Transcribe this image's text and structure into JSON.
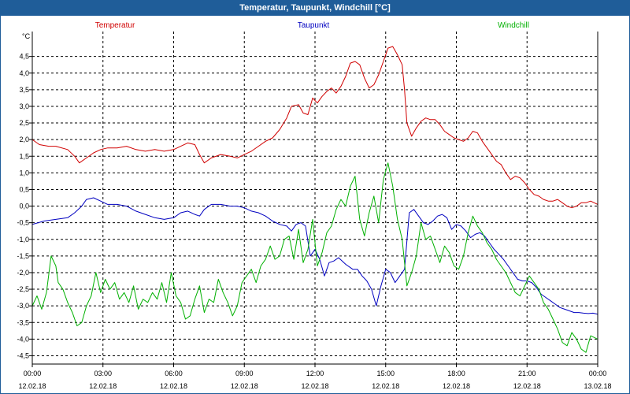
{
  "window": {
    "title": "Temperatur, Taupunkt, Windchill [°C]"
  },
  "colors": {
    "temperatur": "#d00000",
    "taupunkt": "#0000c0",
    "windchill": "#00b000",
    "titlebar": "#1f5d99"
  },
  "chart_data": {
    "type": "line",
    "title": "Temperatur, Taupunkt, Windchill [°C]",
    "ylabel": "°C",
    "xlabel": "",
    "ylim": [
      -4.75,
      5.25
    ],
    "xlim": [
      0,
      24
    ],
    "grid": true,
    "y_ticks": [
      "4,5",
      "4,0",
      "3,5",
      "3,0",
      "2,5",
      "2,0",
      "1,5",
      "1,0",
      "0,5",
      "0,0",
      "-0,5",
      "-1,0",
      "-1,5",
      "-2,0",
      "-2,5",
      "-3,0",
      "-3,5",
      "-4,0",
      "-4,5"
    ],
    "y_tick_values": [
      4.5,
      4.0,
      3.5,
      3.0,
      2.5,
      2.0,
      1.5,
      1.0,
      0.5,
      0.0,
      -0.5,
      -1.0,
      -1.5,
      -2.0,
      -2.5,
      -3.0,
      -3.5,
      -4.0,
      -4.5
    ],
    "x_ticks": [
      {
        "time": "00:00",
        "date": "12.02.18"
      },
      {
        "time": "03:00",
        "date": "12.02.18"
      },
      {
        "time": "06:00",
        "date": "12.02.18"
      },
      {
        "time": "09:00",
        "date": "12.02.18"
      },
      {
        "time": "12:00",
        "date": "12.02.18"
      },
      {
        "time": "15:00",
        "date": "12.02.18"
      },
      {
        "time": "18:00",
        "date": "12.02.18"
      },
      {
        "time": "21:00",
        "date": "12.02.18"
      },
      {
        "time": "00:00",
        "date": "13.02.18"
      }
    ],
    "x_tick_hours": [
      0,
      3,
      6,
      9,
      12,
      15,
      18,
      21,
      24
    ],
    "legend_placement": "top",
    "series": [
      {
        "name": "Temperatur",
        "x": [
          0,
          0.3,
          0.7,
          1,
          1.5,
          1.8,
          2,
          2.3,
          2.6,
          2.9,
          3.2,
          3.6,
          4,
          4.4,
          4.8,
          5.2,
          5.6,
          6,
          6.3,
          6.6,
          6.9,
          7.1,
          7.3,
          7.6,
          8,
          8.4,
          8.7,
          9,
          9.3,
          9.6,
          9.9,
          10.2,
          10.5,
          10.8,
          11,
          11.3,
          11.5,
          11.7,
          11.9,
          12.1,
          12.3,
          12.5,
          12.7,
          12.9,
          13.1,
          13.3,
          13.5,
          13.7,
          13.9,
          14.1,
          14.3,
          14.5,
          14.7,
          14.9,
          15.1,
          15.3,
          15.5,
          15.7,
          15.8,
          15.9,
          16.1,
          16.3,
          16.5,
          16.7,
          16.9,
          17.1,
          17.3,
          17.5,
          17.7,
          17.9,
          18.1,
          18.3,
          18.5,
          18.7,
          18.9,
          19.1,
          19.3,
          19.5,
          19.7,
          19.9,
          20.1,
          20.3,
          20.5,
          20.7,
          20.9,
          21.1,
          21.3,
          21.5,
          21.7,
          21.9,
          22.1,
          22.3,
          22.5,
          22.7,
          22.9,
          23.1,
          23.3,
          23.5,
          23.7,
          24
        ],
        "values": [
          2.0,
          1.85,
          1.8,
          1.8,
          1.7,
          1.5,
          1.3,
          1.45,
          1.6,
          1.7,
          1.75,
          1.75,
          1.8,
          1.7,
          1.65,
          1.7,
          1.65,
          1.7,
          1.8,
          1.9,
          1.85,
          1.55,
          1.3,
          1.45,
          1.55,
          1.5,
          1.45,
          1.55,
          1.65,
          1.8,
          1.95,
          2.05,
          2.3,
          2.65,
          3.0,
          3.05,
          2.8,
          2.75,
          3.25,
          3.1,
          3.3,
          3.45,
          3.55,
          3.4,
          3.6,
          3.9,
          4.3,
          4.35,
          4.25,
          3.85,
          3.55,
          3.65,
          3.95,
          4.35,
          4.75,
          4.8,
          4.55,
          4.25,
          3.5,
          2.5,
          2.1,
          2.35,
          2.55,
          2.65,
          2.6,
          2.6,
          2.45,
          2.25,
          2.15,
          2.05,
          2.0,
          1.95,
          2.05,
          2.25,
          2.2,
          1.95,
          1.75,
          1.55,
          1.35,
          1.25,
          1.0,
          0.8,
          0.9,
          0.85,
          0.7,
          0.5,
          0.35,
          0.3,
          0.2,
          0.15,
          0.15,
          0.2,
          0.1,
          0.0,
          -0.05,
          0.0,
          0.1,
          0.1,
          0.15,
          0.05
        ]
      },
      {
        "name": "Taupunkt",
        "x": [
          0,
          0.5,
          1,
          1.5,
          1.8,
          2.1,
          2.3,
          2.6,
          2.9,
          3.2,
          3.6,
          4,
          4.4,
          4.8,
          5.2,
          5.6,
          6,
          6.3,
          6.6,
          6.9,
          7.1,
          7.3,
          7.6,
          8,
          8.4,
          8.7,
          9,
          9.3,
          9.6,
          9.9,
          10.2,
          10.5,
          10.8,
          11,
          11.2,
          11.4,
          11.6,
          11.8,
          12,
          12.2,
          12.4,
          12.6,
          12.8,
          13,
          13.3,
          13.6,
          13.8,
          14,
          14.2,
          14.4,
          14.6,
          14.8,
          15,
          15.2,
          15.4,
          15.6,
          15.8,
          16,
          16.2,
          16.4,
          16.6,
          16.8,
          17,
          17.2,
          17.4,
          17.6,
          17.8,
          18,
          18.2,
          18.4,
          18.6,
          18.8,
          19,
          19.2,
          19.4,
          19.6,
          19.8,
          20,
          20.2,
          20.4,
          20.6,
          20.8,
          21,
          21.2,
          21.4,
          21.6,
          21.8,
          22,
          22.2,
          22.4,
          22.6,
          22.8,
          23,
          23.2,
          23.4,
          23.6,
          23.8,
          24
        ],
        "values": [
          -0.55,
          -0.45,
          -0.4,
          -0.35,
          -0.2,
          0.0,
          0.2,
          0.25,
          0.15,
          0.05,
          0.05,
          0.0,
          -0.15,
          -0.25,
          -0.35,
          -0.4,
          -0.35,
          -0.2,
          -0.15,
          -0.25,
          -0.3,
          -0.1,
          0.05,
          0.05,
          0.0,
          0.0,
          -0.05,
          -0.15,
          -0.2,
          -0.3,
          -0.45,
          -0.55,
          -0.6,
          -0.75,
          -0.55,
          -0.5,
          -0.6,
          -1.5,
          -1.3,
          -1.6,
          -2.1,
          -1.7,
          -1.65,
          -1.55,
          -1.75,
          -1.9,
          -1.9,
          -2.1,
          -2.25,
          -2.5,
          -3.0,
          -2.4,
          -1.9,
          -2.0,
          -2.3,
          -2.1,
          -1.9,
          -0.2,
          -0.1,
          -0.3,
          -0.5,
          -0.55,
          -0.45,
          -0.3,
          -0.25,
          -0.35,
          -0.7,
          -0.55,
          -0.6,
          -0.75,
          -0.95,
          -0.85,
          -0.8,
          -0.9,
          -1.1,
          -1.3,
          -1.45,
          -1.6,
          -1.8,
          -2.0,
          -2.2,
          -2.25,
          -2.25,
          -2.3,
          -2.45,
          -2.65,
          -2.75,
          -2.85,
          -2.95,
          -3.05,
          -3.1,
          -3.15,
          -3.2,
          -3.2,
          -3.22,
          -3.23,
          -3.22,
          -3.25
        ]
      },
      {
        "name": "Windchill",
        "x": [
          0,
          0.2,
          0.4,
          0.6,
          0.8,
          1,
          1.1,
          1.3,
          1.5,
          1.7,
          1.9,
          2.1,
          2.3,
          2.5,
          2.7,
          2.9,
          3.1,
          3.3,
          3.5,
          3.7,
          3.9,
          4.1,
          4.3,
          4.5,
          4.7,
          4.9,
          5.1,
          5.3,
          5.5,
          5.7,
          5.9,
          6.1,
          6.3,
          6.5,
          6.7,
          6.9,
          7.1,
          7.3,
          7.5,
          7.7,
          7.9,
          8.1,
          8.3,
          8.5,
          8.7,
          8.9,
          9.1,
          9.3,
          9.5,
          9.7,
          9.9,
          10.1,
          10.3,
          10.5,
          10.7,
          10.9,
          11.1,
          11.3,
          11.5,
          11.7,
          11.9,
          12.1,
          12.3,
          12.5,
          12.7,
          12.9,
          13.1,
          13.3,
          13.5,
          13.7,
          13.9,
          14.1,
          14.3,
          14.5,
          14.7,
          14.9,
          15.1,
          15.3,
          15.5,
          15.7,
          15.9,
          16.1,
          16.3,
          16.5,
          16.7,
          16.9,
          17.1,
          17.3,
          17.5,
          17.7,
          17.9,
          18.1,
          18.3,
          18.5,
          18.7,
          18.9,
          19.1,
          19.3,
          19.5,
          19.7,
          19.9,
          20.1,
          20.3,
          20.5,
          20.7,
          20.9,
          21.1,
          21.3,
          21.5,
          21.7,
          21.9,
          22.1,
          22.3,
          22.5,
          22.7,
          22.9,
          23.1,
          23.3,
          23.5,
          23.7,
          24
        ],
        "values": [
          -3.0,
          -2.7,
          -3.1,
          -2.6,
          -1.5,
          -1.8,
          -2.3,
          -2.5,
          -2.9,
          -3.2,
          -3.6,
          -3.5,
          -3.0,
          -2.7,
          -2.0,
          -2.6,
          -2.2,
          -2.5,
          -2.3,
          -2.8,
          -2.6,
          -2.9,
          -2.4,
          -3.1,
          -2.8,
          -2.9,
          -2.6,
          -2.8,
          -2.3,
          -2.9,
          -2.0,
          -2.7,
          -2.9,
          -3.4,
          -3.3,
          -2.8,
          -2.4,
          -3.2,
          -2.8,
          -2.9,
          -2.2,
          -2.6,
          -2.9,
          -3.3,
          -3.0,
          -2.3,
          -2.1,
          -1.9,
          -2.3,
          -1.8,
          -1.6,
          -1.2,
          -1.6,
          -1.5,
          -1.0,
          -0.9,
          -1.6,
          -0.7,
          -1.7,
          -1.3,
          -0.4,
          -1.8,
          -1.4,
          -0.8,
          -0.6,
          -0.1,
          0.2,
          0.0,
          0.6,
          0.9,
          -0.4,
          -0.9,
          -0.2,
          0.3,
          -0.5,
          0.8,
          1.3,
          0.6,
          -0.4,
          -1.0,
          -2.4,
          -2.0,
          -1.5,
          -0.5,
          -1.0,
          -0.9,
          -1.3,
          -1.7,
          -1.2,
          -1.4,
          -1.8,
          -1.9,
          -1.5,
          -0.8,
          -0.3,
          -0.6,
          -0.8,
          -1.1,
          -1.3,
          -1.6,
          -1.8,
          -2.0,
          -2.3,
          -2.6,
          -2.7,
          -2.4,
          -2.1,
          -2.3,
          -2.5,
          -2.9,
          -3.1,
          -3.4,
          -3.7,
          -4.1,
          -4.2,
          -3.8,
          -4.0,
          -4.3,
          -4.4,
          -3.9,
          -4.0
        ]
      }
    ]
  }
}
